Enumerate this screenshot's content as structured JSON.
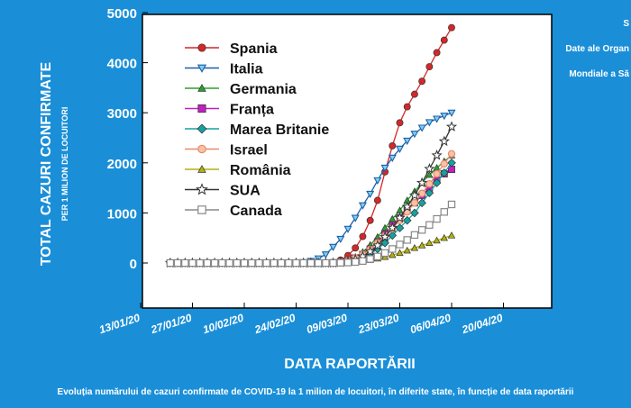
{
  "chart_data": {
    "type": "line",
    "ylabel": "TOTAL CAZURI CONFIRMATE",
    "ylabel_sub": "PER 1 MILION DE LOCUITORI",
    "xlabel": "DATA RAPORTĂRII",
    "caption": "Evoluția numărului de cazuri confirmate de COVID-19 la 1 milion de locuitori, în diferite state, în funcție de data raportării",
    "corner_note": [
      "S",
      "Date ale Organ",
      "Mondiale a Să"
    ],
    "ylim": [
      0,
      5000
    ],
    "yticks": [
      0,
      1000,
      2000,
      3000,
      4000,
      5000
    ],
    "xlim": [
      "2020-01-13",
      "2020-05-01"
    ],
    "xticks": [
      "13/01/20",
      "27/01/20",
      "10/02/20",
      "24/02/20",
      "09/03/20",
      "23/03/20",
      "06/04/20",
      "20/04/20"
    ],
    "x_start": "2020-01-21",
    "x_step_days": 2,
    "legend_position": "top-left",
    "colors": {
      "background": "#1a8fd8",
      "axis_text": "#ffffff",
      "plot_bg": "#ffffff",
      "axis_lines": "#000000"
    },
    "series": [
      {
        "name": "Spania",
        "color": "#d62728",
        "marker": "circle",
        "values": [
          0,
          0,
          0,
          0,
          0,
          0,
          0,
          0,
          0,
          0,
          0,
          0,
          0,
          0,
          0,
          0,
          0,
          0,
          0,
          0,
          0,
          0,
          10,
          60,
          150,
          300,
          530,
          850,
          1250,
          1820,
          2340,
          2800,
          3120,
          3370,
          3630,
          3920,
          4200,
          4450,
          4700
        ]
      },
      {
        "name": "Italia",
        "color": "#1f5fa8",
        "marker": "triangle-down",
        "values": [
          0,
          0,
          0,
          0,
          0,
          0,
          0,
          0,
          0,
          0,
          0,
          0,
          0,
          0,
          0,
          0,
          0,
          0,
          15,
          40,
          90,
          170,
          320,
          480,
          680,
          900,
          1150,
          1380,
          1650,
          1900,
          2100,
          2280,
          2440,
          2580,
          2700,
          2810,
          2880,
          2940,
          3000
        ]
      },
      {
        "name": "Germania",
        "color": "#2ca02c",
        "marker": "triangle-up",
        "values": [
          0,
          0,
          0,
          0,
          0,
          0,
          0,
          0,
          0,
          0,
          0,
          0,
          0,
          0,
          0,
          0,
          0,
          0,
          0,
          0,
          0,
          0,
          5,
          20,
          60,
          120,
          220,
          360,
          520,
          700,
          880,
          1050,
          1250,
          1430,
          1600,
          1760,
          1900,
          2030,
          2150
        ]
      },
      {
        "name": "Franța",
        "color": "#c020c0",
        "marker": "square",
        "values": [
          0,
          0,
          0,
          0,
          0,
          0,
          0,
          0,
          0,
          0,
          0,
          0,
          0,
          0,
          0,
          0,
          0,
          0,
          0,
          0,
          0,
          0,
          5,
          20,
          50,
          100,
          170,
          280,
          420,
          580,
          750,
          900,
          1050,
          1200,
          1350,
          1500,
          1650,
          1780,
          1870
        ]
      },
      {
        "name": "Marea Britanie",
        "color": "#17a0a0",
        "marker": "diamond",
        "values": [
          0,
          0,
          0,
          0,
          0,
          0,
          0,
          0,
          0,
          0,
          0,
          0,
          0,
          0,
          0,
          0,
          0,
          0,
          0,
          0,
          0,
          0,
          0,
          10,
          25,
          50,
          100,
          180,
          280,
          400,
          550,
          700,
          850,
          1000,
          1200,
          1400,
          1600,
          1800,
          2000
        ]
      },
      {
        "name": "Israel",
        "color": "#e8896a",
        "marker": "circle-open",
        "values": [
          0,
          0,
          0,
          0,
          0,
          0,
          0,
          0,
          0,
          0,
          0,
          0,
          0,
          0,
          0,
          0,
          0,
          0,
          0,
          0,
          0,
          0,
          5,
          20,
          50,
          100,
          170,
          270,
          400,
          540,
          690,
          850,
          1020,
          1200,
          1390,
          1580,
          1780,
          1980,
          2180
        ]
      },
      {
        "name": "România",
        "color": "#b0b010",
        "marker": "triangle-up",
        "values": [
          0,
          0,
          0,
          0,
          0,
          0,
          0,
          0,
          0,
          0,
          0,
          0,
          0,
          0,
          0,
          0,
          0,
          0,
          0,
          0,
          0,
          0,
          0,
          5,
          10,
          25,
          40,
          60,
          90,
          120,
          160,
          200,
          250,
          300,
          350,
          400,
          450,
          500,
          550
        ]
      },
      {
        "name": "SUA",
        "color": "#333333",
        "marker": "star",
        "values": [
          0,
          0,
          0,
          0,
          0,
          0,
          0,
          0,
          0,
          0,
          0,
          0,
          0,
          0,
          0,
          0,
          0,
          0,
          0,
          0,
          0,
          0,
          0,
          10,
          30,
          70,
          130,
          230,
          350,
          520,
          700,
          900,
          1120,
          1350,
          1600,
          1880,
          2150,
          2430,
          2720
        ]
      },
      {
        "name": "Canada",
        "color": "#888888",
        "marker": "square-open",
        "values": [
          0,
          0,
          0,
          0,
          0,
          0,
          0,
          0,
          0,
          0,
          0,
          0,
          0,
          0,
          0,
          0,
          0,
          0,
          0,
          0,
          0,
          0,
          0,
          5,
          10,
          20,
          40,
          80,
          130,
          200,
          280,
          370,
          460,
          560,
          660,
          760,
          880,
          1020,
          1170
        ]
      }
    ]
  }
}
